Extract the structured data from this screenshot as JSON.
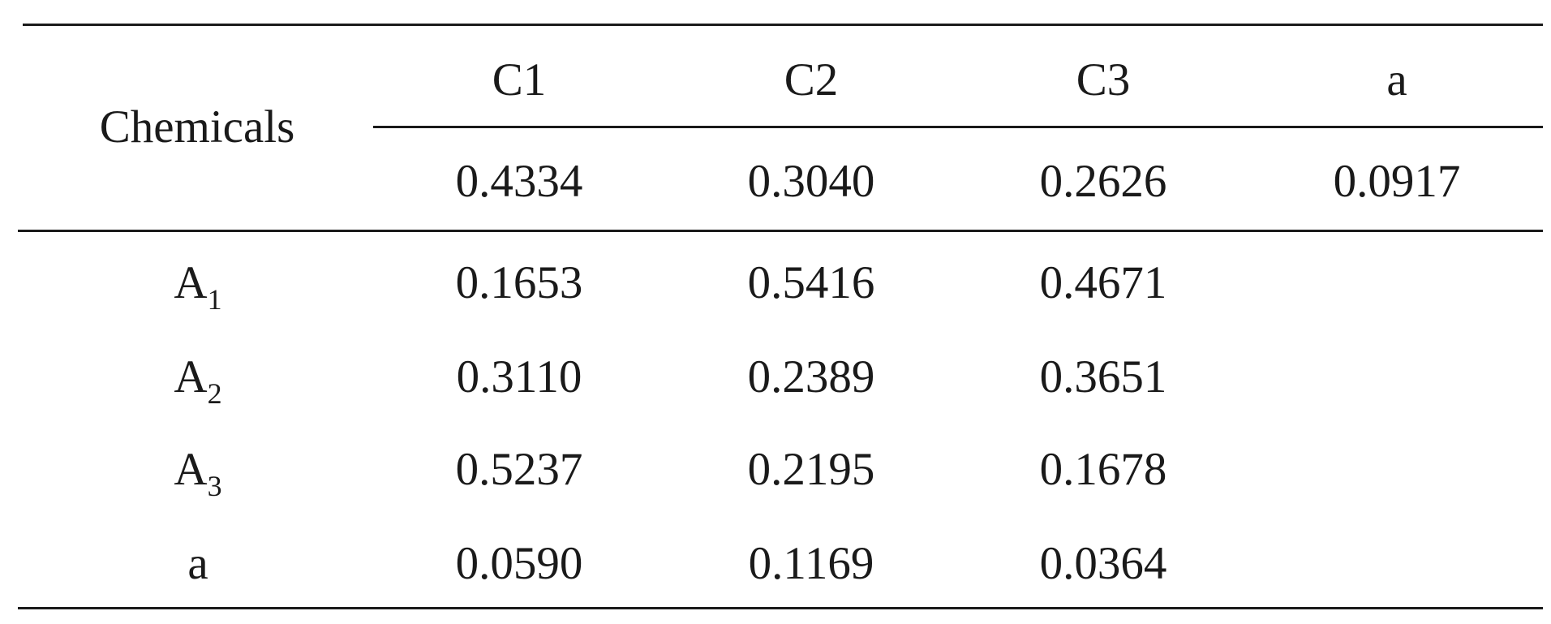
{
  "table": {
    "row_header_label": "Chemicals",
    "columns": [
      "C1",
      "C2",
      "C3",
      "a"
    ],
    "column_weights": [
      "0.4334",
      "0.3040",
      "0.2626",
      "0.0917"
    ],
    "rows": [
      {
        "label_main": "A",
        "label_sub": "1",
        "values": [
          "0.1653",
          "0.5416",
          "0.4671",
          ""
        ]
      },
      {
        "label_main": "A",
        "label_sub": "2",
        "values": [
          "0.3110",
          "0.2389",
          "0.3651",
          ""
        ]
      },
      {
        "label_main": "A",
        "label_sub": "3",
        "values": [
          "0.5237",
          "0.2195",
          "0.1678",
          ""
        ]
      },
      {
        "label_main": "a",
        "label_sub": "",
        "values": [
          "0.0590",
          "0.1169",
          "0.0364",
          ""
        ]
      }
    ]
  }
}
